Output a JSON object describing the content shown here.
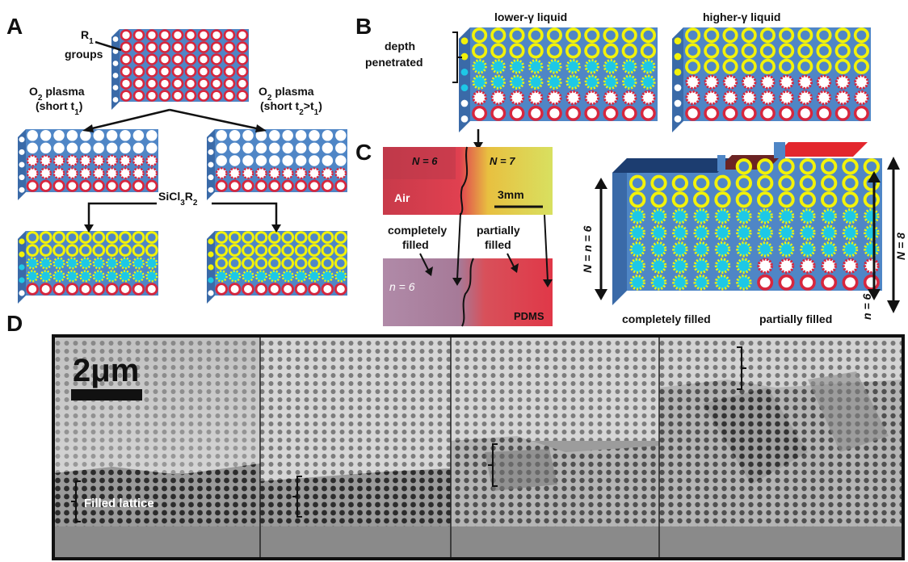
{
  "panels": {
    "a": "A",
    "b": "B",
    "c": "C",
    "d": "D"
  },
  "panel_a": {
    "r1_groups": {
      "main": "R",
      "sub": "1",
      "line2": "groups"
    },
    "left_plasma": {
      "line1": "O",
      "line1_sub": "2",
      "line1_rest": " plasma",
      "line2": "(short t",
      "line2_sub": "1",
      "line2_end": ")"
    },
    "right_plasma": {
      "line1": "O",
      "line1_sub": "2",
      "line1_rest": " plasma",
      "line2": "(short t",
      "line2_sub": "2",
      "line2_mid": ">t",
      "line2_sub2": "1",
      "line2_end": ")"
    },
    "reagent": {
      "a": "SiCl",
      "a_sub": "3",
      "b": "R",
      "b_sub": "2"
    }
  },
  "panel_b": {
    "lower_gamma": "lower-γ liquid",
    "higher_gamma": "higher-γ liquid",
    "depth_line1": "depth",
    "depth_line2": "penetrated"
  },
  "panel_c": {
    "n6": "N = 6",
    "n7": "N = 7",
    "air": "Air",
    "scale": "3mm",
    "completely_filled_line1": "completely",
    "completely_filled_line2": "filled",
    "partially_filled_line1": "partially",
    "partially_filled_line2": "filled",
    "n_small": "n = 6",
    "pdms": "PDMS",
    "block_completely": "completely filled",
    "block_partially": "partially filled",
    "left_arrow": "N = n = 6",
    "right_inner": "n = 6",
    "right_outer": "N = 8"
  },
  "panel_d": {
    "scale_bar": "2μm",
    "filled_lattice": "Filled lattice"
  },
  "colors": {
    "block_face": "#4f86c6",
    "block_top": "#6d9cd4",
    "block_side": "#3a6aa8",
    "red_ring": "#d7263d",
    "yellow_ring": "#f2f20a",
    "cyan_fill": "#1ec8e6",
    "lid_navy": "#1c3d70",
    "lid_brown": "#6b2323",
    "lid_red": "#e3262d"
  }
}
